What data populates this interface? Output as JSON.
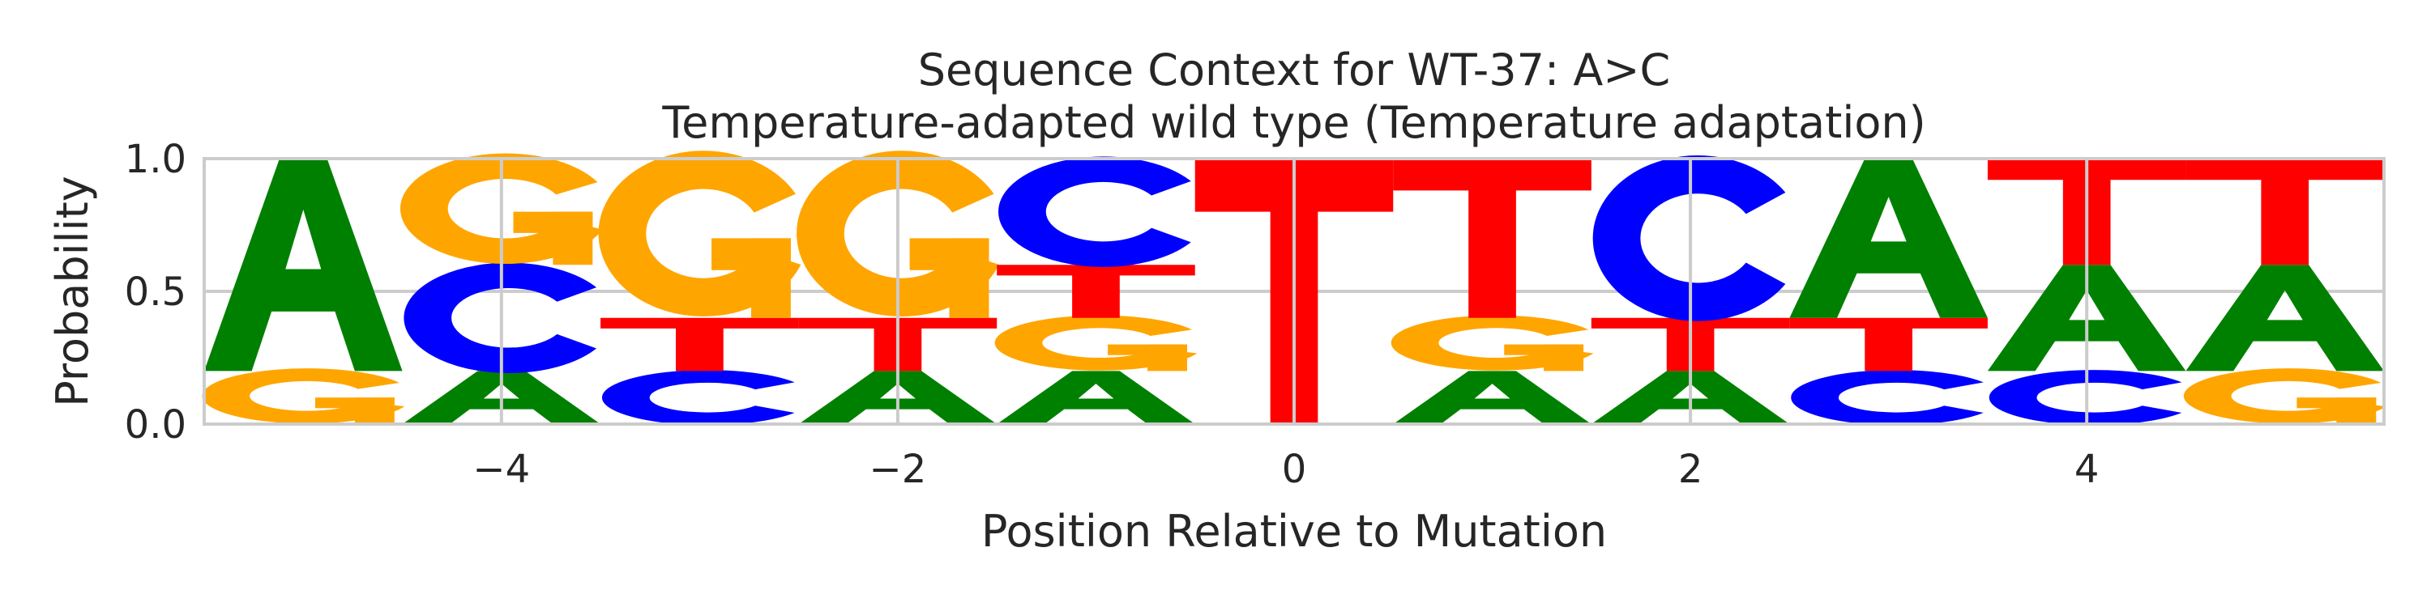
{
  "chart_data": {
    "type": "sequence-logo",
    "title": "Sequence Context for WT-37: A>C",
    "subtitle": "Temperature-adapted wild type (Temperature adaptation)",
    "xlabel": "Position Relative to Mutation",
    "ylabel": "Probability",
    "xlim": [
      -5.5,
      5.5
    ],
    "ylim": [
      0,
      1
    ],
    "xticks": [
      -4,
      -2,
      0,
      2,
      4
    ],
    "xtick_labels": [
      "−4",
      "−2",
      "0",
      "2",
      "4"
    ],
    "yticks": [
      0.0,
      0.5,
      1.0
    ],
    "ytick_labels": [
      "0.0",
      "0.5",
      "1.0"
    ],
    "grid": true,
    "colors": {
      "A": "#008000",
      "C": "#0000ff",
      "G": "#ffa500",
      "T": "#ff0000"
    },
    "positions": [
      {
        "pos": -5,
        "stack": [
          {
            "base": "G",
            "prob": 0.2
          },
          {
            "base": "A",
            "prob": 0.8
          }
        ]
      },
      {
        "pos": -4,
        "stack": [
          {
            "base": "A",
            "prob": 0.2
          },
          {
            "base": "C",
            "prob": 0.4
          },
          {
            "base": "G",
            "prob": 0.4
          }
        ]
      },
      {
        "pos": -3,
        "stack": [
          {
            "base": "C",
            "prob": 0.2
          },
          {
            "base": "T",
            "prob": 0.2
          },
          {
            "base": "G",
            "prob": 0.6
          }
        ]
      },
      {
        "pos": -2,
        "stack": [
          {
            "base": "A",
            "prob": 0.2
          },
          {
            "base": "T",
            "prob": 0.2
          },
          {
            "base": "G",
            "prob": 0.6
          }
        ]
      },
      {
        "pos": -1,
        "stack": [
          {
            "base": "A",
            "prob": 0.2
          },
          {
            "base": "G",
            "prob": 0.2
          },
          {
            "base": "T",
            "prob": 0.2
          },
          {
            "base": "C",
            "prob": 0.4
          }
        ]
      },
      {
        "pos": 0,
        "stack": [
          {
            "base": "T",
            "prob": 1.0
          }
        ]
      },
      {
        "pos": 1,
        "stack": [
          {
            "base": "A",
            "prob": 0.2
          },
          {
            "base": "G",
            "prob": 0.2
          },
          {
            "base": "T",
            "prob": 0.6
          }
        ]
      },
      {
        "pos": 2,
        "stack": [
          {
            "base": "A",
            "prob": 0.2
          },
          {
            "base": "T",
            "prob": 0.2
          },
          {
            "base": "C",
            "prob": 0.6
          }
        ]
      },
      {
        "pos": 3,
        "stack": [
          {
            "base": "C",
            "prob": 0.2
          },
          {
            "base": "T",
            "prob": 0.2
          },
          {
            "base": "A",
            "prob": 0.6
          }
        ]
      },
      {
        "pos": 4,
        "stack": [
          {
            "base": "C",
            "prob": 0.2
          },
          {
            "base": "A",
            "prob": 0.4
          },
          {
            "base": "T",
            "prob": 0.4
          }
        ]
      },
      {
        "pos": 5,
        "stack": [
          {
            "base": "G",
            "prob": 0.2
          },
          {
            "base": "A",
            "prob": 0.4
          },
          {
            "base": "T",
            "prob": 0.4
          }
        ]
      }
    ]
  }
}
